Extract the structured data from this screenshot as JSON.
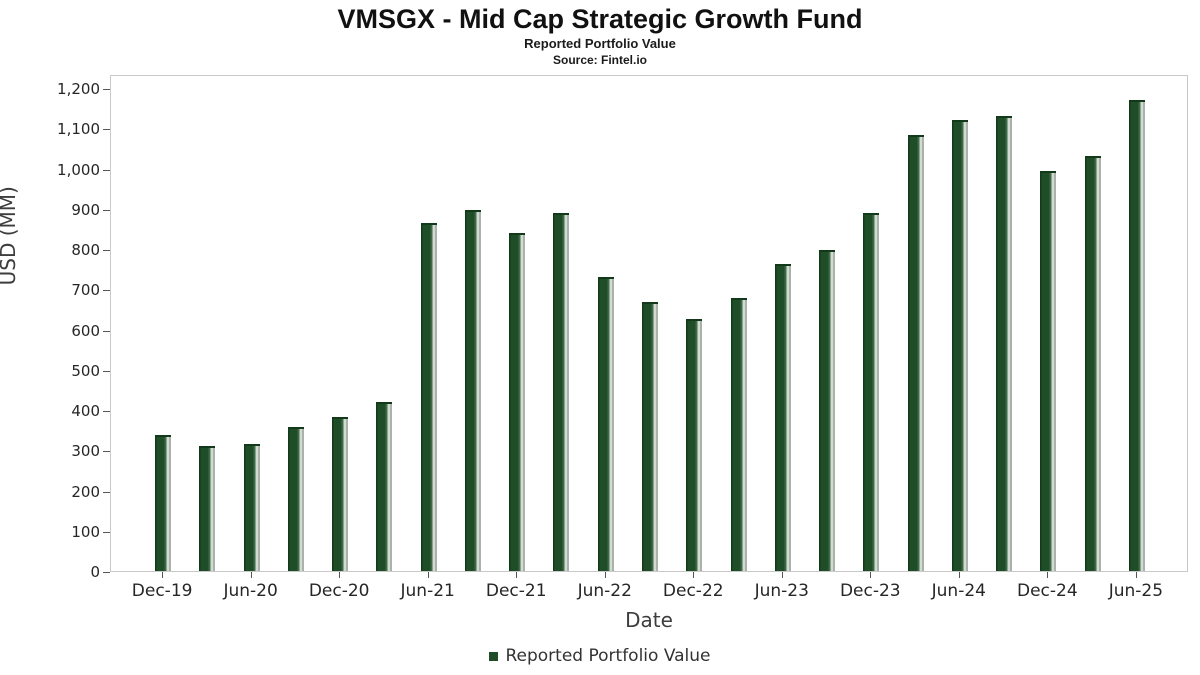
{
  "header": {
    "title": "VMSGX - Mid Cap Strategic Growth Fund",
    "subtitle": "Reported Portfolio Value",
    "source": "Source: Fintel.io"
  },
  "chart_data": {
    "type": "bar",
    "title": "VMSGX - Mid Cap Strategic Growth Fund",
    "subtitle": "Reported Portfolio Value",
    "source": "Source: Fintel.io",
    "categories": [
      "Dec-19",
      "Mar-20",
      "Jun-20",
      "Sep-20",
      "Dec-20",
      "Mar-21",
      "Jun-21",
      "Sep-21",
      "Dec-21",
      "Mar-22",
      "Jun-22",
      "Sep-22",
      "Dec-22",
      "Mar-23",
      "Jun-23",
      "Sep-23",
      "Dec-23",
      "Mar-24",
      "Jun-24",
      "Sep-24",
      "Dec-24",
      "Mar-25",
      "Jun-25"
    ],
    "values": [
      338,
      310,
      315,
      357,
      382,
      420,
      865,
      897,
      840,
      890,
      730,
      668,
      627,
      678,
      762,
      797,
      890,
      1082,
      1120,
      1130,
      995,
      1032,
      1170
    ],
    "series_name": "Reported Portfolio Value",
    "xlabel": "Date",
    "ylabel": "USD (MM)",
    "ylim": [
      0,
      1200
    ],
    "ytick_step": 100,
    "xtick_labels": [
      "Dec-19",
      "Jun-20",
      "Dec-20",
      "Jun-21",
      "Dec-21",
      "Jun-22",
      "Dec-22",
      "Jun-23",
      "Dec-23",
      "Jun-24",
      "Dec-24",
      "Jun-25"
    ],
    "legend_label": "Reported Portfolio Value",
    "legend_position": "bottom",
    "grid": false,
    "bar_color": "#1e4d27"
  }
}
